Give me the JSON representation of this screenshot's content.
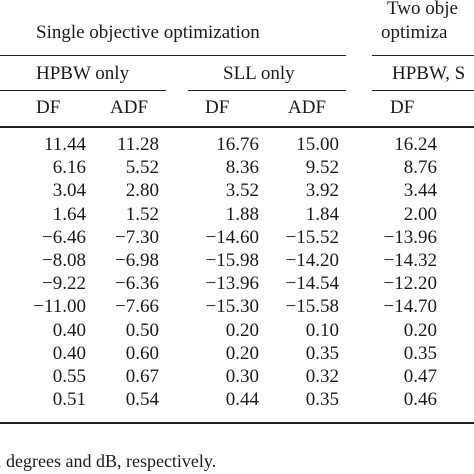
{
  "table": {
    "group_headers": {
      "single_objective": "Single objective optimization",
      "two_objective_line1": "Two obje",
      "two_objective_line2": "optimiza"
    },
    "sub_headers": {
      "hpbw_only": "HPBW only",
      "sll_only": "SLL only",
      "hpbw_sll": "HPBW, S"
    },
    "column_headers": [
      "DF",
      "ADF",
      "DF",
      "ADF",
      "DF"
    ],
    "rows": [
      [
        "11.44",
        "11.28",
        "16.76",
        "15.00",
        "16.24"
      ],
      [
        "6.16",
        "5.52",
        "8.36",
        "9.52",
        "8.76"
      ],
      [
        "3.04",
        "2.80",
        "3.52",
        "3.92",
        "3.44"
      ],
      [
        "1.64",
        "1.52",
        "1.88",
        "1.84",
        "2.00"
      ],
      [
        "−6.46",
        "−7.30",
        "−14.60",
        "−15.52",
        "−13.96"
      ],
      [
        "−8.08",
        "−6.98",
        "−15.98",
        "−14.20",
        "−14.32"
      ],
      [
        "−9.22",
        "−6.36",
        "−13.96",
        "−14.54",
        "−12.20"
      ],
      [
        "−11.00",
        "−7.66",
        "−15.30",
        "−15.58",
        "−14.70"
      ],
      [
        "0.40",
        "0.50",
        "0.20",
        "0.10",
        "0.20"
      ],
      [
        "0.40",
        "0.60",
        "0.20",
        "0.35",
        "0.35"
      ],
      [
        "0.55",
        "0.67",
        "0.30",
        "0.32",
        "0.47"
      ],
      [
        "0.51",
        "0.54",
        "0.44",
        "0.35",
        "0.46"
      ]
    ],
    "footnote": ", degrees and dB, respectively."
  }
}
